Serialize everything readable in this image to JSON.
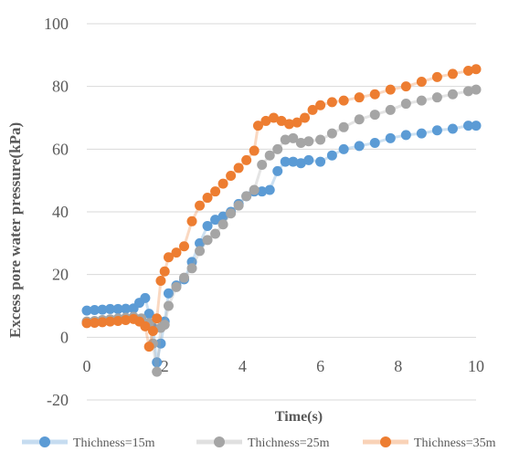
{
  "chart_data": {
    "type": "scatter",
    "title": "",
    "xlabel": "Time(s)",
    "ylabel": "Excess pore water pressure(kPa)",
    "xlim": [
      0,
      10
    ],
    "ylim": [
      -20,
      100
    ],
    "x_ticks": [
      "0",
      "2",
      "4",
      "6",
      "8",
      "10"
    ],
    "y_ticks": [
      "-20",
      "0",
      "20",
      "40",
      "60",
      "80",
      "100"
    ],
    "grid": "horizontal",
    "legend_position": "bottom",
    "series": [
      {
        "name": "Thichness=15m",
        "color": "#5b9bd5",
        "x": [
          0.0,
          0.2,
          0.4,
          0.6,
          0.8,
          1.0,
          1.2,
          1.35,
          1.5,
          1.6,
          1.7,
          1.8,
          1.9,
          2.0,
          2.1,
          2.3,
          2.5,
          2.7,
          2.9,
          3.1,
          3.3,
          3.5,
          3.7,
          3.9,
          4.1,
          4.3,
          4.5,
          4.7,
          4.9,
          5.1,
          5.3,
          5.5,
          5.7,
          6.0,
          6.3,
          6.6,
          7.0,
          7.4,
          7.8,
          8.2,
          8.6,
          9.0,
          9.4,
          9.8,
          10.0
        ],
        "y": [
          8.5,
          8.7,
          8.8,
          9.0,
          9.0,
          9.1,
          9.2,
          11.0,
          12.5,
          7.5,
          3.0,
          -8.0,
          -2.0,
          5.0,
          14.0,
          16.5,
          18.5,
          24.0,
          30.0,
          35.5,
          37.5,
          38.5,
          40.0,
          42.5,
          45.0,
          46.5,
          46.5,
          47.0,
          53.0,
          56.0,
          56.0,
          55.5,
          56.5,
          56.0,
          58.0,
          60.0,
          61.0,
          62.0,
          63.5,
          64.5,
          65.0,
          66.0,
          66.5,
          67.5,
          67.5
        ]
      },
      {
        "name": "Thichness=25m",
        "color": "#a5a5a5",
        "x": [
          0.0,
          0.2,
          0.4,
          0.6,
          0.8,
          1.0,
          1.2,
          1.4,
          1.6,
          1.7,
          1.8,
          1.9,
          2.0,
          2.1,
          2.3,
          2.5,
          2.7,
          2.9,
          3.1,
          3.3,
          3.5,
          3.7,
          3.9,
          4.1,
          4.3,
          4.5,
          4.7,
          4.9,
          5.1,
          5.3,
          5.5,
          5.7,
          6.0,
          6.3,
          6.6,
          7.0,
          7.4,
          7.8,
          8.2,
          8.6,
          9.0,
          9.4,
          9.8,
          10.0
        ],
        "y": [
          5.0,
          5.2,
          5.5,
          5.7,
          6.0,
          6.2,
          6.5,
          6.0,
          4.5,
          -2.0,
          -11.0,
          3.0,
          4.0,
          10.0,
          16.0,
          19.0,
          22.0,
          27.5,
          31.0,
          33.0,
          36.0,
          39.5,
          42.0,
          45.0,
          47.0,
          55.0,
          58.0,
          60.0,
          63.0,
          63.5,
          62.0,
          62.5,
          63.0,
          65.0,
          67.0,
          69.5,
          71.0,
          72.5,
          74.5,
          75.5,
          76.5,
          77.5,
          78.5,
          79.0
        ]
      },
      {
        "name": "Thichness=35m",
        "color": "#ed7d31",
        "x": [
          0.0,
          0.2,
          0.4,
          0.6,
          0.8,
          1.0,
          1.2,
          1.35,
          1.5,
          1.6,
          1.7,
          1.8,
          1.9,
          2.0,
          2.1,
          2.3,
          2.5,
          2.7,
          2.9,
          3.1,
          3.3,
          3.5,
          3.7,
          3.9,
          4.1,
          4.3,
          4.4,
          4.6,
          4.8,
          5.0,
          5.2,
          5.4,
          5.6,
          5.8,
          6.0,
          6.3,
          6.6,
          7.0,
          7.4,
          7.8,
          8.2,
          8.6,
          9.0,
          9.4,
          9.8,
          10.0
        ],
        "y": [
          4.5,
          4.6,
          4.8,
          5.0,
          5.2,
          5.5,
          5.8,
          5.0,
          3.5,
          -3.0,
          2.0,
          6.0,
          18.0,
          21.0,
          25.5,
          27.0,
          29.0,
          37.0,
          42.0,
          44.5,
          46.5,
          49.0,
          51.5,
          54.0,
          56.5,
          59.5,
          67.5,
          69.0,
          70.0,
          69.0,
          68.0,
          68.5,
          70.0,
          72.5,
          74.0,
          75.0,
          75.5,
          76.5,
          77.5,
          79.0,
          80.0,
          81.5,
          83.0,
          84.0,
          85.0,
          85.5
        ]
      }
    ]
  }
}
